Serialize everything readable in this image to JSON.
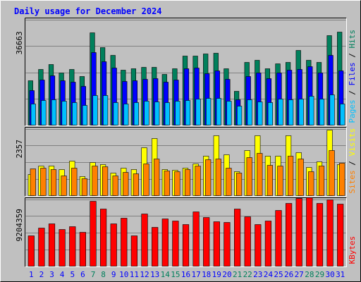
{
  "chart_data": {
    "type": "bar",
    "title": "Daily usage for December 2024",
    "categories": [
      "1",
      "2",
      "3",
      "4",
      "5",
      "6",
      "7",
      "8",
      "9",
      "10",
      "11",
      "12",
      "13",
      "14",
      "15",
      "16",
      "17",
      "18",
      "19",
      "20",
      "21",
      "22",
      "23",
      "24",
      "25",
      "26",
      "27",
      "28",
      "29",
      "30",
      "31"
    ],
    "weekend_days": [
      "7",
      "8",
      "14",
      "15",
      "21",
      "22",
      "28",
      "29"
    ],
    "panels": [
      {
        "name": "hits-files-pages",
        "ymax_label": "36663",
        "ymax": 36663,
        "grid_values": [
          36663,
          27497,
          18331,
          9166
        ],
        "series": [
          {
            "name": "Hits",
            "color": "#00805c",
            "values": [
              15500,
              19300,
              21000,
              18100,
              19300,
              16900,
              32000,
              27000,
              24300,
              19100,
              19600,
              20000,
              20000,
              17500,
              19600,
              23900,
              23900,
              24800,
              24900,
              19500,
              11800,
              21700,
              22600,
              19500,
              21300,
              21700,
              25800,
              22600,
              21700,
              31100,
              32300
            ]
          },
          {
            "name": "Files",
            "color": "#0000ff",
            "values": [
              11900,
              15600,
              17100,
              15500,
              14800,
              13500,
              25200,
              22000,
              19800,
              15200,
              15500,
              16000,
              16100,
              14900,
              15600,
              19500,
              19700,
              17900,
              18800,
              16000,
              8900,
              16800,
              18000,
              16200,
              18100,
              19100,
              19200,
              20400,
              18200,
              24100,
              18800
            ]
          },
          {
            "name": "Pages",
            "color": "#00c0ff",
            "values": [
              7400,
              8500,
              8800,
              8200,
              7700,
              6900,
              10200,
              10200,
              7700,
              7300,
              7700,
              8400,
              8000,
              7700,
              8400,
              8500,
              9100,
              9400,
              9200,
              8400,
              6600,
              8700,
              8000,
              7900,
              9000,
              8800,
              9100,
              10000,
              9000,
              10400,
              7400
            ]
          }
        ]
      },
      {
        "name": "visits-sites",
        "ymax_label": "2357",
        "ymax": 2357,
        "grid_values": [
          2357,
          1767,
          1178,
          589
        ],
        "series": [
          {
            "name": "Visits",
            "color": "#ffff00",
            "values": [
              750,
              1050,
              1030,
              910,
              1210,
              660,
              1170,
              1080,
              800,
              960,
              910,
              1690,
              2000,
              910,
              890,
              980,
              1120,
              1400,
              2100,
              1430,
              840,
              1600,
              2100,
              1400,
              1400,
              2100,
              1520,
              1000,
              1200,
              2300,
              1080
            ]
          },
          {
            "name": "Sites",
            "color": "#ff8000",
            "values": [
              950,
              960,
              930,
              700,
              980,
              600,
              1040,
              1020,
              690,
              810,
              760,
              1120,
              1280,
              860,
              840,
              930,
              1040,
              1260,
              1300,
              970,
              800,
              1350,
              1500,
              1070,
              1050,
              1380,
              1300,
              850,
              1050,
              1590,
              1150
            ]
          }
        ]
      },
      {
        "name": "kbytes",
        "ymax_label": "9204359",
        "ymax": 9204359,
        "grid_values": [
          9204359,
          6903269,
          4602179,
          2301089
        ],
        "series": [
          {
            "name": "KBytes",
            "color": "#ff0000",
            "values": [
              4175000,
              5186000,
              5771000,
              5035000,
              5405000,
              4677000,
              8955000,
              7824000,
              5857000,
              6605000,
              4214000,
              7154000,
              5354000,
              6507000,
              6162000,
              5734000,
              7462000,
              6645000,
              6124000,
              5992000,
              7856000,
              6800000,
              5727000,
              6226000,
              7633000,
              8617000,
              9257000,
              9370000,
              8598000,
              9149000,
              8557000
            ]
          }
        ]
      }
    ],
    "legend_right": [
      [
        {
          "text": "Pages",
          "color": "#00c0ff"
        },
        {
          "text": " / ",
          "color": "#000000"
        },
        {
          "text": "Files",
          "color": "#0000ff"
        },
        {
          "text": " / ",
          "color": "#000000"
        },
        {
          "text": "Hits",
          "color": "#00805c"
        }
      ],
      [
        {
          "text": "Sites",
          "color": "#ff8000"
        },
        {
          "text": " / ",
          "color": "#000000"
        },
        {
          "text": "Visits",
          "color": "#ffff00"
        }
      ],
      [
        {
          "text": "KBytes",
          "color": "#ff0000"
        }
      ]
    ],
    "colors": {
      "background": "#c0c0c0",
      "title": "#0000ff",
      "weekday_label": "#0000ff",
      "weekend_label": "#00805c",
      "grid": "#808080"
    }
  }
}
